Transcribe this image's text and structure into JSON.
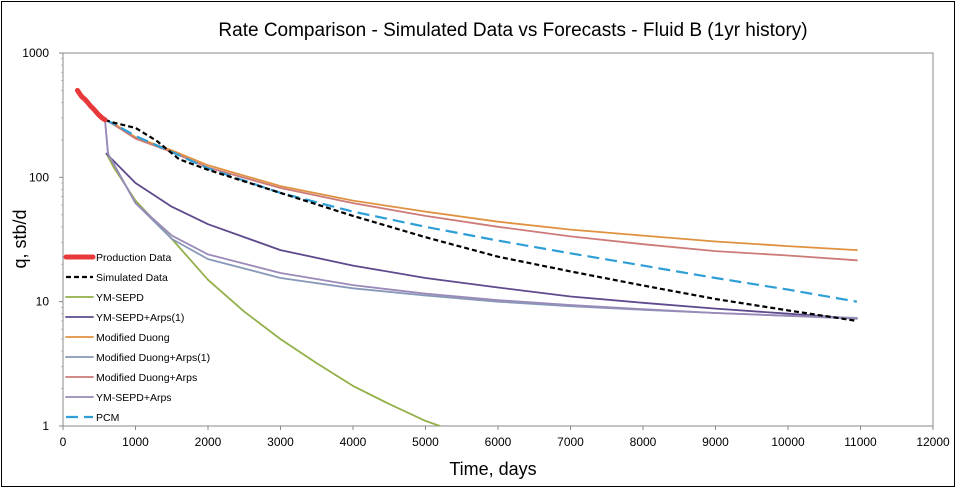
{
  "chart_data": {
    "type": "line",
    "title": "Rate Comparison - Simulated Data vs Forecasts - Fluid B (1yr history)",
    "xlabel": "Time, days",
    "ylabel": "q, stb/d",
    "xlim": [
      0,
      12000
    ],
    "ylim": [
      1,
      1000
    ],
    "yscale": "log",
    "grid": false,
    "legend_position": "left",
    "x_ticks": [
      0,
      1000,
      2000,
      3000,
      4000,
      5000,
      6000,
      7000,
      8000,
      9000,
      10000,
      11000,
      12000
    ],
    "y_ticks": [
      1,
      10,
      100,
      1000
    ],
    "series": [
      {
        "name": "Production Data",
        "color": "#e8393a",
        "style": "thick",
        "x": [
          200,
          230,
          260,
          300,
          340,
          380,
          420,
          460,
          500,
          540,
          580
        ],
        "y": [
          500,
          470,
          445,
          425,
          400,
          375,
          355,
          335,
          315,
          300,
          290
        ]
      },
      {
        "name": "Simulated Data",
        "color": "#000000",
        "style": "dotted",
        "x": [
          580,
          700,
          1000,
          1300,
          1600,
          2000,
          3000,
          4000,
          5000,
          6000,
          7000,
          8000,
          9000,
          10000,
          10950
        ],
        "y": [
          290,
          275,
          250,
          195,
          140,
          115,
          75,
          49,
          33,
          23,
          17.5,
          13.5,
          10.5,
          8.5,
          7.0
        ]
      },
      {
        "name": "YM-SEPD",
        "color": "#93b04a",
        "style": "solid",
        "x": [
          600,
          700,
          1000,
          1500,
          2000,
          2500,
          3000,
          3500,
          4000,
          4500,
          5000,
          5200
        ],
        "y": [
          155,
          120,
          65,
          32,
          15,
          8.3,
          5.0,
          3.2,
          2.1,
          1.5,
          1.1,
          1.0
        ]
      },
      {
        "name": "YM-SEPD+Arps(1)",
        "color": "#5e4a8c",
        "style": "solid",
        "x": [
          600,
          1000,
          1500,
          2000,
          3000,
          4000,
          5000,
          6000,
          7000,
          8000,
          9000,
          10000,
          10950
        ],
        "y": [
          155,
          90,
          58,
          42,
          26,
          19.5,
          15.5,
          13,
          11,
          9.8,
          8.8,
          8.0,
          7.3
        ]
      },
      {
        "name": "Modified Duong",
        "color": "#e0913f",
        "style": "solid",
        "x": [
          580,
          700,
          1000,
          1500,
          2000,
          3000,
          4000,
          5000,
          6000,
          7000,
          8000,
          9000,
          10000,
          10950
        ],
        "y": [
          290,
          270,
          210,
          165,
          125,
          85,
          65,
          53,
          44,
          38,
          34,
          30.5,
          28,
          26
        ]
      },
      {
        "name": "Modified Duong+Arps(1)",
        "color": "#8898b8",
        "style": "solid",
        "x": [
          580,
          620,
          1000,
          1500,
          2000,
          3000,
          4000,
          5000,
          6000,
          7000,
          8000,
          9000,
          10000,
          10950
        ],
        "y": [
          290,
          155,
          62,
          32,
          22,
          15.5,
          12.8,
          11.2,
          10,
          9.2,
          8.6,
          8.1,
          7.7,
          7.4
        ]
      },
      {
        "name": "Modified Duong+Arps",
        "color": "#cc7b78",
        "style": "solid",
        "x": [
          580,
          700,
          1000,
          1500,
          2000,
          3000,
          4000,
          5000,
          6000,
          7000,
          8000,
          9000,
          10000,
          10950
        ],
        "y": [
          290,
          265,
          205,
          160,
          120,
          82,
          62,
          49,
          40,
          33.5,
          29,
          25.5,
          23.5,
          21.5
        ]
      },
      {
        "name": "YM-SEPD+Arps",
        "color": "#9a8ab8",
        "style": "solid",
        "x": [
          580,
          620,
          1000,
          1500,
          2000,
          3000,
          4000,
          5000,
          6000,
          7000,
          8000,
          9000,
          10000,
          10950
        ],
        "y": [
          290,
          155,
          62,
          34,
          24,
          17,
          13.6,
          11.6,
          10.3,
          9.4,
          8.7,
          8.1,
          7.7,
          7.3
        ]
      },
      {
        "name": "PCM",
        "color": "#2e9fd6",
        "style": "dashed",
        "x": [
          580,
          700,
          1000,
          1500,
          2000,
          3000,
          4000,
          5000,
          6000,
          7000,
          8000,
          9000,
          10000,
          10950
        ],
        "y": [
          290,
          270,
          215,
          160,
          118,
          75,
          53,
          40,
          31,
          24.5,
          19.5,
          15.5,
          12.5,
          10.0
        ]
      }
    ]
  }
}
